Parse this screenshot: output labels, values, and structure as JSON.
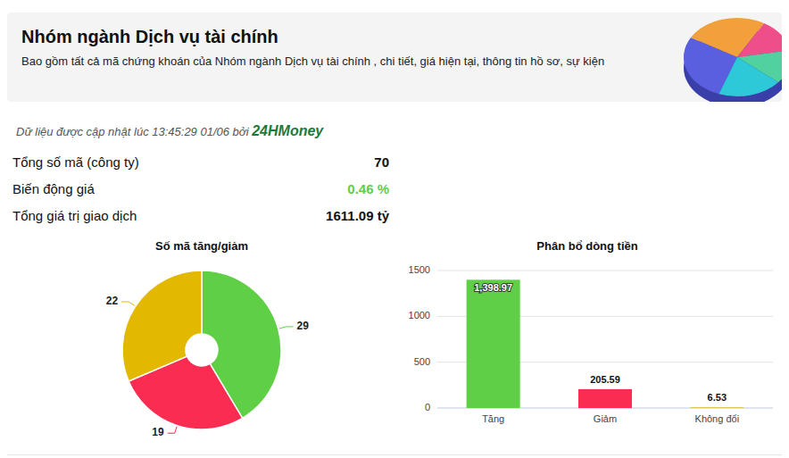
{
  "header": {
    "title": "Nhóm ngành Dịch vụ tài chính",
    "subtitle": "Bao gồm tất cả mã chứng khoán của Nhóm ngành Dịch vụ tài chính , chi tiết, giá hiện tại, thông tin hồ sơ, sự kiện"
  },
  "update": {
    "text": "Dữ liệu được cập nhật lúc 13:45:29 01/06 bởi",
    "source": "24HMoney"
  },
  "stats": [
    {
      "label": "Tổng số mã (công ty)",
      "value": "70"
    },
    {
      "label": "Biến động giá",
      "value": "0.46 %",
      "color": "#5fcf45"
    },
    {
      "label": "Tổng giá trị giao dịch",
      "value": "1611.09 tỷ"
    }
  ],
  "chart_data": [
    {
      "type": "pie",
      "title": "Số mã tăng/giảm",
      "values": [
        29,
        19,
        22
      ],
      "colors": [
        "#5fcf45",
        "#fb2c52",
        "#e2b800"
      ],
      "data_labels": true
    },
    {
      "type": "bar",
      "title": "Phân bổ dòng tiền",
      "categories": [
        "Tăng",
        "Giảm",
        "Không đổi"
      ],
      "values": [
        1398.97,
        205.59,
        6.53
      ],
      "value_labels": [
        "1,398.97",
        "205.59",
        "6.53"
      ],
      "colors": [
        "#5fcf45",
        "#fb2c52",
        "#e2b800"
      ],
      "ylim": [
        0,
        1500
      ],
      "yticks": [
        0,
        500,
        1000,
        1500
      ],
      "grid": true,
      "data_labels": true
    }
  ]
}
